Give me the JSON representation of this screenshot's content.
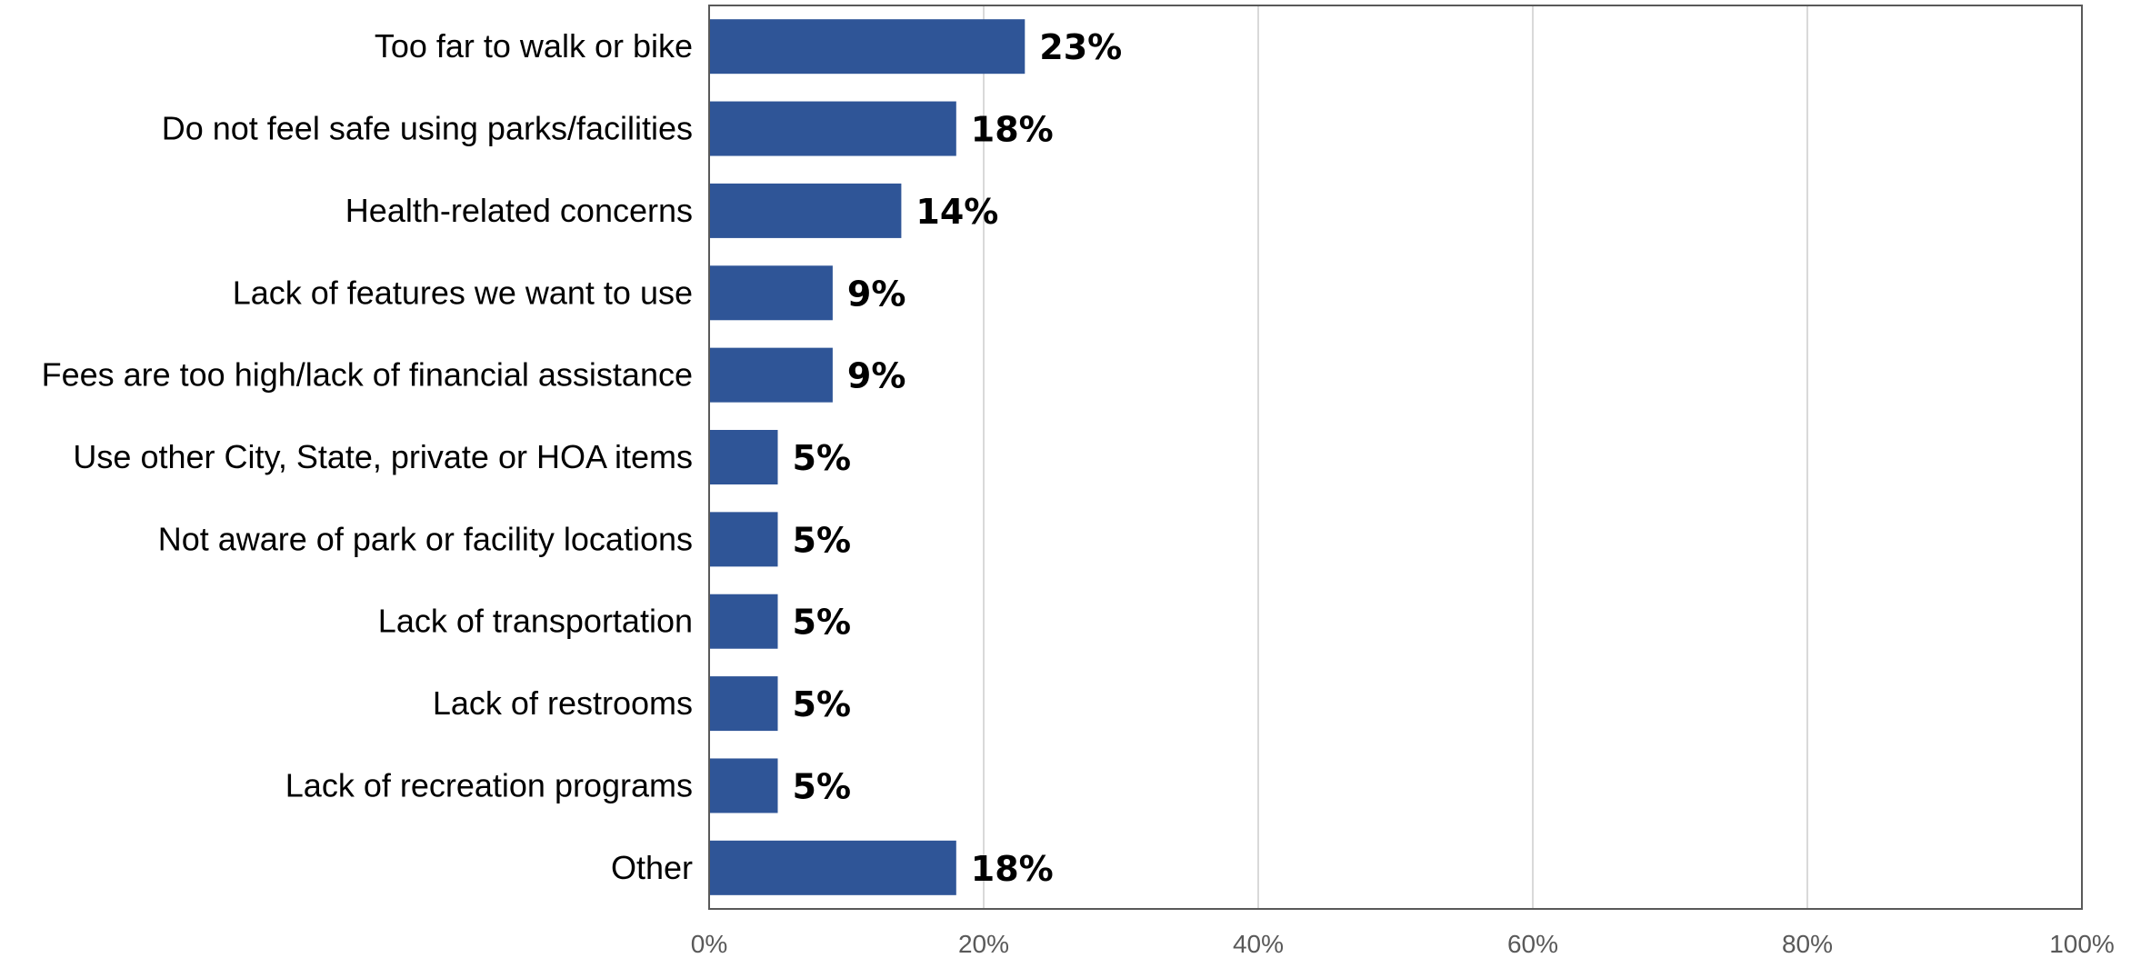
{
  "chart_data": {
    "type": "bar",
    "orientation": "horizontal",
    "title": "",
    "xlabel": "",
    "ylabel": "",
    "categories": [
      "Too far to walk or bike",
      "Do not feel safe using parks/facilities",
      "Health-related concerns",
      "Lack of features we want to use",
      "Fees are too high/lack of financial assistance",
      "Use other City, State, private or HOA items",
      "Not aware of park or facility locations",
      "Lack of transportation",
      "Lack of restrooms",
      "Lack of recreation programs",
      "Other"
    ],
    "values": [
      23,
      18,
      14,
      9,
      9,
      5,
      5,
      5,
      5,
      5,
      18
    ],
    "value_labels": [
      "23%",
      "18%",
      "14%",
      "9%",
      "9%",
      "5%",
      "5%",
      "5%",
      "5%",
      "5%",
      "18%"
    ],
    "xlim": [
      0,
      100
    ],
    "x_ticks": [
      0,
      20,
      40,
      60,
      80,
      100
    ],
    "x_tick_labels": [
      "0%",
      "20%",
      "40%",
      "60%",
      "80%",
      "100%"
    ],
    "grid": "vertical",
    "legend": "none",
    "bar_color": "#2F5597"
  }
}
